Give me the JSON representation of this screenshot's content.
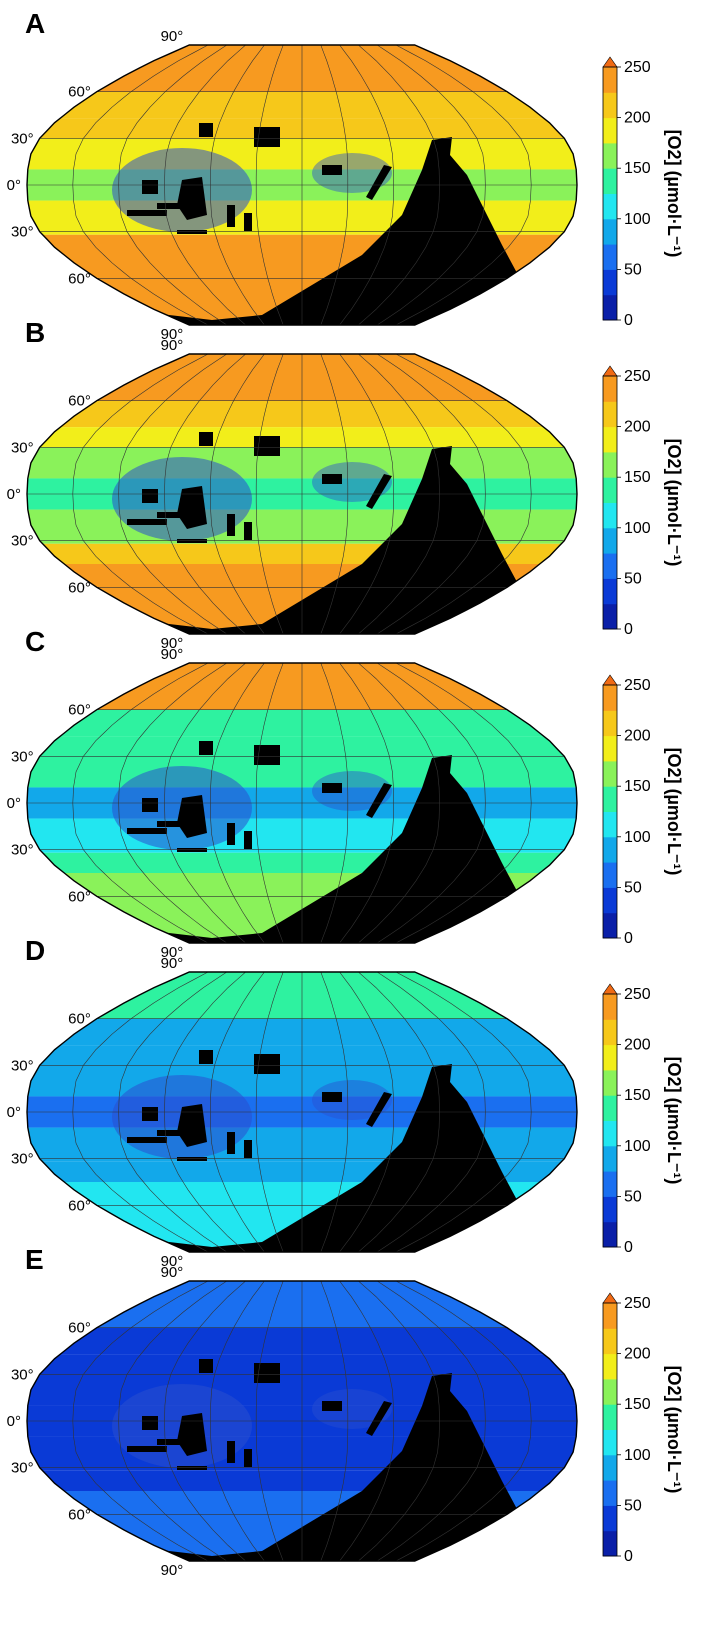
{
  "chart_data": [
    {
      "type": "heatmap",
      "panel": "A",
      "projection": "Robinson world map",
      "lat_labels": [
        "90°",
        "60°",
        "30°",
        "0°",
        "30°",
        "60°",
        "90°"
      ],
      "lat_bands": [
        {
          "lat": [
            60,
            90
          ],
          "value": 240
        },
        {
          "lat": [
            43,
            60
          ],
          "value": 215
        },
        {
          "lat": [
            30,
            43
          ],
          "value": 205
        },
        {
          "lat": [
            10,
            30
          ],
          "value": 190
        },
        {
          "lat": [
            -10,
            10
          ],
          "value": 165
        },
        {
          "lat": [
            -32,
            -10
          ],
          "value": 190
        },
        {
          "lat": [
            -45,
            -32
          ],
          "value": 225
        },
        {
          "lat": [
            -90,
            -45
          ],
          "value": 240
        }
      ],
      "colorbar": {
        "label": "[O2] (µmol·L⁻¹)",
        "ticks": [
          0,
          50,
          100,
          150,
          200,
          250
        ],
        "range": [
          0,
          250
        ]
      }
    },
    {
      "type": "heatmap",
      "panel": "B",
      "projection": "Robinson world map",
      "lat_labels": [
        "90°",
        "60°",
        "30°",
        "0°",
        "30°",
        "60°",
        "90°"
      ],
      "lat_bands": [
        {
          "lat": [
            60,
            90
          ],
          "value": 240
        },
        {
          "lat": [
            43,
            60
          ],
          "value": 205
        },
        {
          "lat": [
            30,
            43
          ],
          "value": 185
        },
        {
          "lat": [
            10,
            30
          ],
          "value": 160
        },
        {
          "lat": [
            -10,
            10
          ],
          "value": 130
        },
        {
          "lat": [
            -32,
            -10
          ],
          "value": 160
        },
        {
          "lat": [
            -45,
            -32
          ],
          "value": 205
        },
        {
          "lat": [
            -90,
            -45
          ],
          "value": 225
        }
      ],
      "colorbar": {
        "label": "[O2] (µmol·L⁻¹)",
        "ticks": [
          0,
          50,
          100,
          150,
          200,
          250
        ],
        "range": [
          0,
          250
        ]
      }
    },
    {
      "type": "heatmap",
      "panel": "C",
      "projection": "Robinson world map",
      "lat_labels": [
        "90°",
        "60°",
        "30°",
        "0°",
        "30°",
        "60°",
        "90°"
      ],
      "lat_bands": [
        {
          "lat": [
            60,
            90
          ],
          "value": 225
        },
        {
          "lat": [
            43,
            60
          ],
          "value": 140
        },
        {
          "lat": [
            30,
            43
          ],
          "value": 125
        },
        {
          "lat": [
            10,
            30
          ],
          "value": 140
        },
        {
          "lat": [
            -10,
            10
          ],
          "value": 95
        },
        {
          "lat": [
            -32,
            -10
          ],
          "value": 115
        },
        {
          "lat": [
            -45,
            -32
          ],
          "value": 135
        },
        {
          "lat": [
            -90,
            -45
          ],
          "value": 170
        }
      ],
      "colorbar": {
        "label": "[O2] (µmol·L⁻¹)",
        "ticks": [
          0,
          50,
          100,
          150,
          200,
          250
        ],
        "range": [
          0,
          250
        ]
      }
    },
    {
      "type": "heatmap",
      "panel": "D",
      "projection": "Robinson world map",
      "lat_labels": [
        "90°",
        "60°",
        "30°",
        "0°",
        "30°",
        "60°",
        "90°"
      ],
      "lat_bands": [
        {
          "lat": [
            60,
            90
          ],
          "value": 140
        },
        {
          "lat": [
            43,
            60
          ],
          "value": 95
        },
        {
          "lat": [
            30,
            43
          ],
          "value": 85
        },
        {
          "lat": [
            10,
            30
          ],
          "value": 85
        },
        {
          "lat": [
            -10,
            10
          ],
          "value": 60
        },
        {
          "lat": [
            -32,
            -10
          ],
          "value": 80
        },
        {
          "lat": [
            -45,
            -32
          ],
          "value": 95
        },
        {
          "lat": [
            -90,
            -45
          ],
          "value": 110
        }
      ],
      "colorbar": {
        "label": "[O2] (µmol·L⁻¹)",
        "ticks": [
          0,
          50,
          100,
          150,
          200,
          250
        ],
        "range": [
          0,
          250
        ]
      }
    },
    {
      "type": "heatmap",
      "panel": "E",
      "projection": "Robinson world map",
      "lat_labels": [
        "90°",
        "60°",
        "30°",
        "0°",
        "30°",
        "60°",
        "90°"
      ],
      "lat_bands": [
        {
          "lat": [
            60,
            90
          ],
          "value": 70
        },
        {
          "lat": [
            43,
            60
          ],
          "value": 45
        },
        {
          "lat": [
            30,
            43
          ],
          "value": 40
        },
        {
          "lat": [
            10,
            30
          ],
          "value": 40
        },
        {
          "lat": [
            -10,
            10
          ],
          "value": 30
        },
        {
          "lat": [
            -32,
            -10
          ],
          "value": 40
        },
        {
          "lat": [
            -45,
            -32
          ],
          "value": 45
        },
        {
          "lat": [
            -90,
            -45
          ],
          "value": 65
        }
      ],
      "colorbar": {
        "label": "[O2] (µmol·L⁻¹)",
        "ticks": [
          0,
          50,
          100,
          150,
          200,
          250
        ],
        "range": [
          0,
          250
        ]
      }
    }
  ],
  "colors": {
    "land": "#000000",
    "low_oxygen_patch": "#2a4fd0",
    "colormap": [
      "#0a1fa8",
      "#0a3ad6",
      "#1a6ff0",
      "#12a8ea",
      "#22e6f0",
      "#2ef2a0",
      "#8af25a",
      "#f2ee1a",
      "#f6c81a",
      "#f79a20",
      "#f06a14"
    ]
  }
}
